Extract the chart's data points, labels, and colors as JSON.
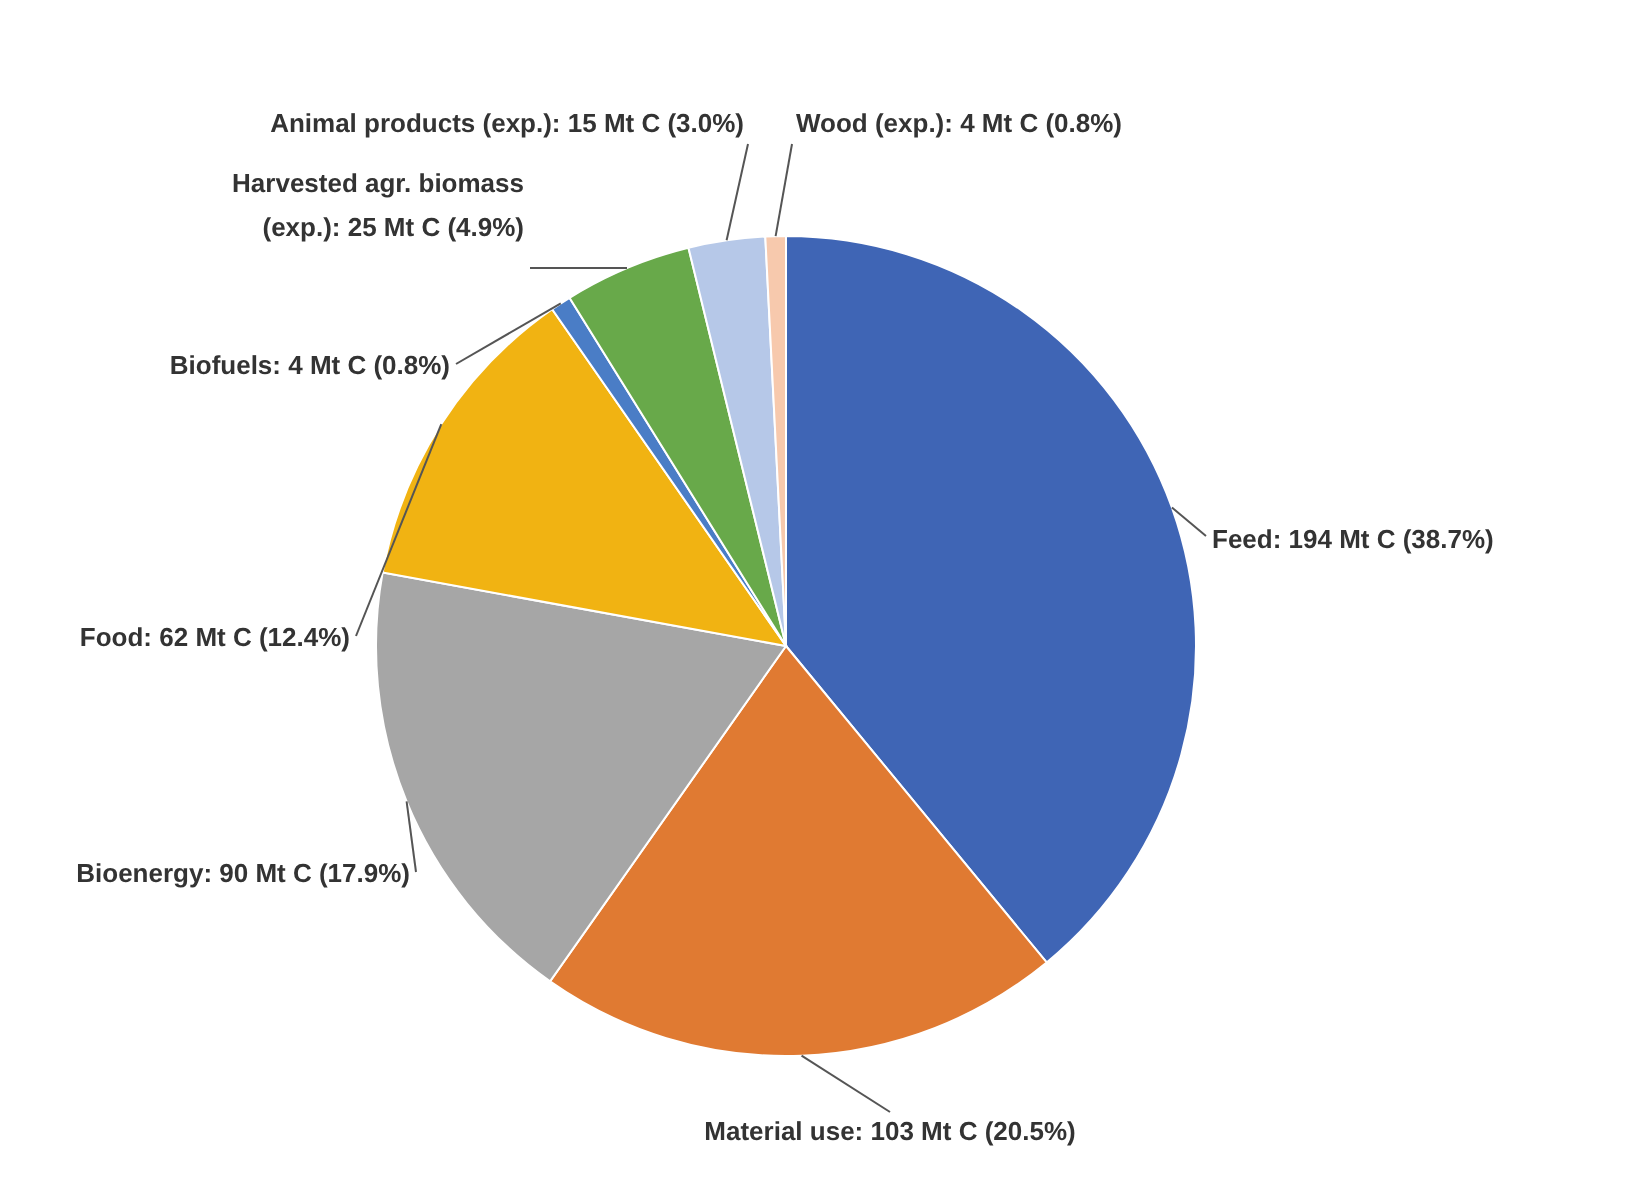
{
  "chart_data": {
    "type": "pie",
    "categories": [
      "Feed",
      "Material use",
      "Bioenergy",
      "Food",
      "Biofuels",
      "Harvested agr. biomass (exp.)",
      "Animal products (exp.)",
      "Wood (exp.)"
    ],
    "values": [
      194,
      103,
      90,
      62,
      4,
      25,
      15,
      4
    ],
    "colors": [
      "#3f65b5",
      "#e07a32",
      "#a6a6a6",
      "#f1b312",
      "#4a7dc6",
      "#68a94a",
      "#b6c8e8",
      "#f7c9ad"
    ],
    "value_labels": [
      "194 Mt C (38.7%)",
      "103 Mt C (20.5%)",
      "90 Mt C (17.9%)",
      "62 Mt C (12.4%)",
      "4 Mt C (0.8%)",
      "25 Mt C (4.9%)",
      "15 Mt C (3.0%)",
      "4 Mt C (0.8%)"
    ]
  }
}
